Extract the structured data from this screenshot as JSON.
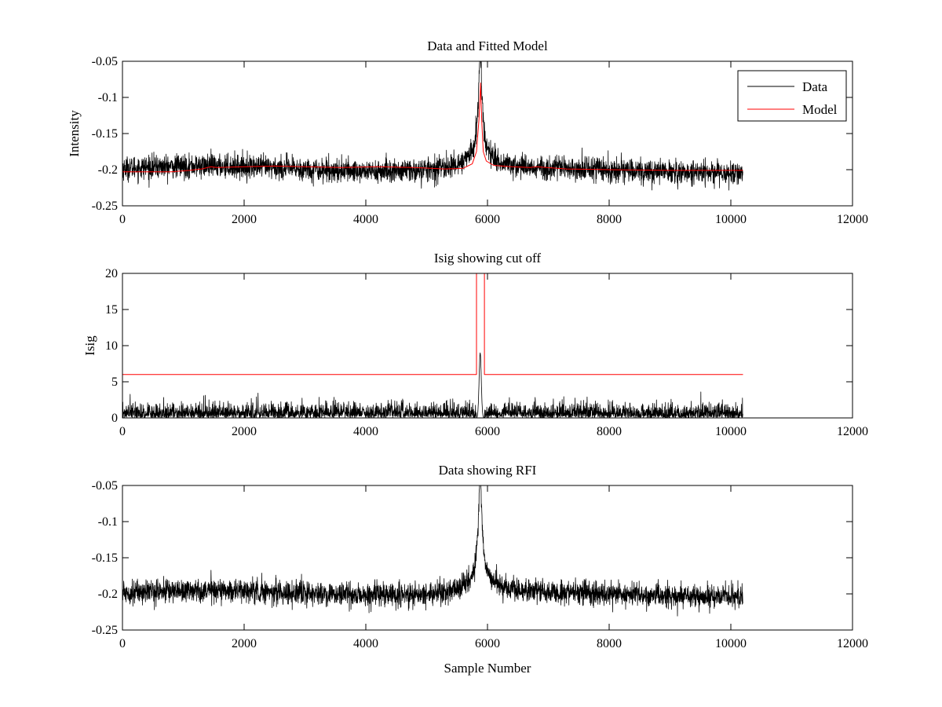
{
  "colors": {
    "data": "#000000",
    "model": "#ff0000",
    "background": "#ffffff",
    "axes": "#000000"
  },
  "chart_data": [
    {
      "type": "line",
      "title": "Data and Fitted Model",
      "xlabel": "",
      "ylabel": "Intensity",
      "xlim": [
        0,
        12000
      ],
      "ylim": [
        -0.25,
        -0.05
      ],
      "xticks": [
        0,
        2000,
        4000,
        6000,
        8000,
        10000,
        12000
      ],
      "yticks": [
        -0.25,
        -0.2,
        -0.15,
        -0.1,
        -0.05
      ],
      "ytick_labels": [
        "-0.25",
        "-0.2",
        "-0.15",
        "-0.1",
        "-0.05"
      ],
      "legend": {
        "location": "top-right",
        "entries": [
          {
            "label": "Data",
            "color": "#000000"
          },
          {
            "label": "Model",
            "color": "#ff0000"
          }
        ]
      },
      "series": [
        {
          "name": "Data",
          "kind": "noisy",
          "color": "#000000",
          "n_samples": 10200,
          "baseline": -0.2,
          "noise_amplitude": 0.016,
          "peak": {
            "center": 5880,
            "height": 0.14,
            "width": 45,
            "wing_height": 0.02,
            "wing_width": 320
          }
        },
        {
          "name": "Model",
          "kind": "smooth",
          "color": "#ff0000",
          "points": [
            [
              0,
              -0.203
            ],
            [
              500,
              -0.203
            ],
            [
              800,
              -0.203
            ],
            [
              1100,
              -0.201
            ],
            [
              1300,
              -0.199
            ],
            [
              1450,
              -0.196
            ],
            [
              1550,
              -0.197
            ],
            [
              2000,
              -0.196
            ],
            [
              2500,
              -0.195
            ],
            [
              3000,
              -0.196
            ],
            [
              3600,
              -0.197
            ],
            [
              4200,
              -0.196
            ],
            [
              4800,
              -0.197
            ],
            [
              5300,
              -0.199
            ],
            [
              5600,
              -0.198
            ],
            [
              5750,
              -0.192
            ],
            [
              5820,
              -0.175
            ],
            [
              5860,
              -0.13
            ],
            [
              5885,
              -0.08
            ],
            [
              5905,
              -0.13
            ],
            [
              5930,
              -0.175
            ],
            [
              5980,
              -0.188
            ],
            [
              6100,
              -0.194
            ],
            [
              6400,
              -0.196
            ],
            [
              6700,
              -0.197
            ],
            [
              6800,
              -0.196
            ],
            [
              7300,
              -0.199
            ],
            [
              8000,
              -0.2
            ],
            [
              9000,
              -0.201
            ],
            [
              10200,
              -0.201
            ]
          ]
        }
      ]
    },
    {
      "type": "line",
      "title": "Isig showing cut off",
      "xlabel": "",
      "ylabel": "Isig",
      "xlim": [
        0,
        12000
      ],
      "ylim": [
        0,
        20
      ],
      "xticks": [
        0,
        2000,
        4000,
        6000,
        8000,
        10000,
        12000
      ],
      "yticks": [
        0,
        5,
        10,
        15,
        20
      ],
      "ytick_labels": [
        "0",
        "5",
        "10",
        "15",
        "20"
      ],
      "series": [
        {
          "name": "Isig",
          "kind": "noisy_positive",
          "color": "#000000",
          "n_samples": 10200,
          "baseline": 0,
          "noise_amplitude": 1.7,
          "gap": [
            5820,
            5950
          ],
          "peak": {
            "center": 5880,
            "height": 9,
            "width": 25
          }
        },
        {
          "name": "Cut off",
          "kind": "step",
          "color": "#ff0000",
          "points": [
            [
              0,
              6
            ],
            [
              5820,
              6
            ],
            [
              5820,
              20
            ],
            [
              5950,
              20
            ],
            [
              5950,
              6
            ],
            [
              10200,
              6
            ]
          ]
        }
      ]
    },
    {
      "type": "line",
      "title": "Data showing RFI",
      "xlabel": "Sample Number",
      "ylabel": "",
      "xlim": [
        0,
        12000
      ],
      "ylim": [
        -0.25,
        -0.05
      ],
      "xticks": [
        0,
        2000,
        4000,
        6000,
        8000,
        10000,
        12000
      ],
      "yticks": [
        -0.25,
        -0.2,
        -0.15,
        -0.1,
        -0.05
      ],
      "ytick_labels": [
        "-0.25",
        "-0.2",
        "-0.15",
        "-0.1",
        "-0.05"
      ],
      "series": [
        {
          "name": "Data",
          "kind": "noisy",
          "color": "#000000",
          "n_samples": 10200,
          "baseline": -0.2,
          "noise_amplitude": 0.016,
          "peak": {
            "center": 5880,
            "height": 0.14,
            "width": 45,
            "wing_height": 0.02,
            "wing_width": 320
          }
        }
      ]
    }
  ]
}
